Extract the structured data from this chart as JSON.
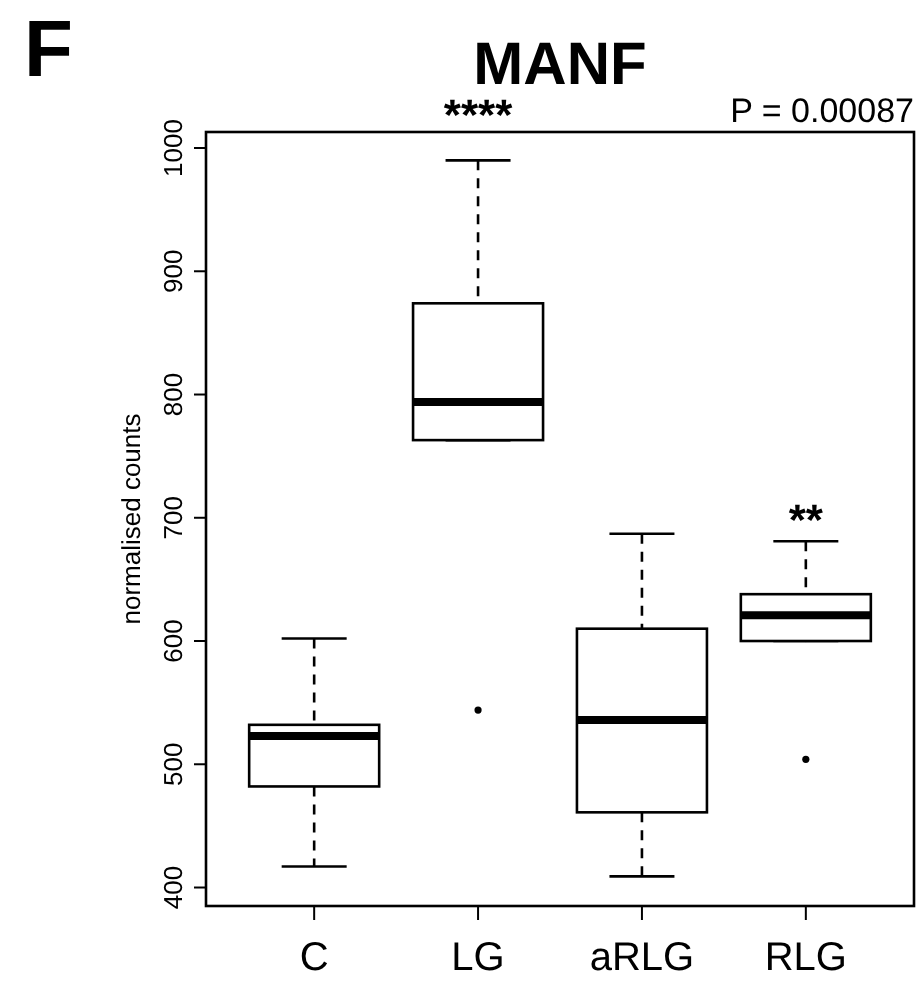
{
  "chart_data": {
    "type": "box",
    "title": "MANF",
    "ylabel": "normalised counts",
    "categories": [
      "C",
      "LG",
      "aRLG",
      "RLG"
    ],
    "boxes": [
      {
        "low": 417,
        "q1": 482,
        "median": 523,
        "q3": 532,
        "high": 602
      },
      {
        "low": 763,
        "q1": 763,
        "median": 794,
        "q3": 874,
        "high": 990,
        "outliers": [
          544
        ]
      },
      {
        "low": 409,
        "q1": 461,
        "median": 536,
        "q3": 610,
        "high": 687
      },
      {
        "low": 600,
        "q1": 600,
        "median": 621,
        "q3": 638,
        "high": 681,
        "outliers": [
          504
        ]
      }
    ],
    "ylim": [
      385,
      1013
    ],
    "yticks": [
      400,
      500,
      600,
      700,
      800,
      900,
      1000
    ],
    "annotations": [
      "F",
      "P =  0.00087",
      {
        "text": "****",
        "x": "LG",
        "y": 990
      },
      {
        "text": "**",
        "x": "RLG",
        "y": 681
      }
    ]
  }
}
